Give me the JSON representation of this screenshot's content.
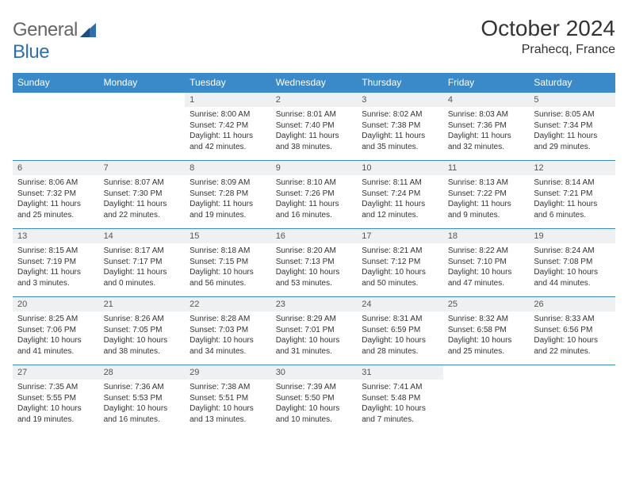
{
  "brand": {
    "part1": "General",
    "part2": "Blue"
  },
  "title": "October 2024",
  "location": "Prahecq, France",
  "colors": {
    "header_bg": "#3a8ac9",
    "header_fg": "#ffffff",
    "daynum_bg": "#eef0f2",
    "border": "#3a8ac9",
    "text": "#333333"
  },
  "daynames": [
    "Sunday",
    "Monday",
    "Tuesday",
    "Wednesday",
    "Thursday",
    "Friday",
    "Saturday"
  ],
  "weeks": [
    [
      null,
      null,
      {
        "n": "1",
        "sr": "Sunrise: 8:00 AM",
        "ss": "Sunset: 7:42 PM",
        "d1": "Daylight: 11 hours",
        "d2": "and 42 minutes."
      },
      {
        "n": "2",
        "sr": "Sunrise: 8:01 AM",
        "ss": "Sunset: 7:40 PM",
        "d1": "Daylight: 11 hours",
        "d2": "and 38 minutes."
      },
      {
        "n": "3",
        "sr": "Sunrise: 8:02 AM",
        "ss": "Sunset: 7:38 PM",
        "d1": "Daylight: 11 hours",
        "d2": "and 35 minutes."
      },
      {
        "n": "4",
        "sr": "Sunrise: 8:03 AM",
        "ss": "Sunset: 7:36 PM",
        "d1": "Daylight: 11 hours",
        "d2": "and 32 minutes."
      },
      {
        "n": "5",
        "sr": "Sunrise: 8:05 AM",
        "ss": "Sunset: 7:34 PM",
        "d1": "Daylight: 11 hours",
        "d2": "and 29 minutes."
      }
    ],
    [
      {
        "n": "6",
        "sr": "Sunrise: 8:06 AM",
        "ss": "Sunset: 7:32 PM",
        "d1": "Daylight: 11 hours",
        "d2": "and 25 minutes."
      },
      {
        "n": "7",
        "sr": "Sunrise: 8:07 AM",
        "ss": "Sunset: 7:30 PM",
        "d1": "Daylight: 11 hours",
        "d2": "and 22 minutes."
      },
      {
        "n": "8",
        "sr": "Sunrise: 8:09 AM",
        "ss": "Sunset: 7:28 PM",
        "d1": "Daylight: 11 hours",
        "d2": "and 19 minutes."
      },
      {
        "n": "9",
        "sr": "Sunrise: 8:10 AM",
        "ss": "Sunset: 7:26 PM",
        "d1": "Daylight: 11 hours",
        "d2": "and 16 minutes."
      },
      {
        "n": "10",
        "sr": "Sunrise: 8:11 AM",
        "ss": "Sunset: 7:24 PM",
        "d1": "Daylight: 11 hours",
        "d2": "and 12 minutes."
      },
      {
        "n": "11",
        "sr": "Sunrise: 8:13 AM",
        "ss": "Sunset: 7:22 PM",
        "d1": "Daylight: 11 hours",
        "d2": "and 9 minutes."
      },
      {
        "n": "12",
        "sr": "Sunrise: 8:14 AM",
        "ss": "Sunset: 7:21 PM",
        "d1": "Daylight: 11 hours",
        "d2": "and 6 minutes."
      }
    ],
    [
      {
        "n": "13",
        "sr": "Sunrise: 8:15 AM",
        "ss": "Sunset: 7:19 PM",
        "d1": "Daylight: 11 hours",
        "d2": "and 3 minutes."
      },
      {
        "n": "14",
        "sr": "Sunrise: 8:17 AM",
        "ss": "Sunset: 7:17 PM",
        "d1": "Daylight: 11 hours",
        "d2": "and 0 minutes."
      },
      {
        "n": "15",
        "sr": "Sunrise: 8:18 AM",
        "ss": "Sunset: 7:15 PM",
        "d1": "Daylight: 10 hours",
        "d2": "and 56 minutes."
      },
      {
        "n": "16",
        "sr": "Sunrise: 8:20 AM",
        "ss": "Sunset: 7:13 PM",
        "d1": "Daylight: 10 hours",
        "d2": "and 53 minutes."
      },
      {
        "n": "17",
        "sr": "Sunrise: 8:21 AM",
        "ss": "Sunset: 7:12 PM",
        "d1": "Daylight: 10 hours",
        "d2": "and 50 minutes."
      },
      {
        "n": "18",
        "sr": "Sunrise: 8:22 AM",
        "ss": "Sunset: 7:10 PM",
        "d1": "Daylight: 10 hours",
        "d2": "and 47 minutes."
      },
      {
        "n": "19",
        "sr": "Sunrise: 8:24 AM",
        "ss": "Sunset: 7:08 PM",
        "d1": "Daylight: 10 hours",
        "d2": "and 44 minutes."
      }
    ],
    [
      {
        "n": "20",
        "sr": "Sunrise: 8:25 AM",
        "ss": "Sunset: 7:06 PM",
        "d1": "Daylight: 10 hours",
        "d2": "and 41 minutes."
      },
      {
        "n": "21",
        "sr": "Sunrise: 8:26 AM",
        "ss": "Sunset: 7:05 PM",
        "d1": "Daylight: 10 hours",
        "d2": "and 38 minutes."
      },
      {
        "n": "22",
        "sr": "Sunrise: 8:28 AM",
        "ss": "Sunset: 7:03 PM",
        "d1": "Daylight: 10 hours",
        "d2": "and 34 minutes."
      },
      {
        "n": "23",
        "sr": "Sunrise: 8:29 AM",
        "ss": "Sunset: 7:01 PM",
        "d1": "Daylight: 10 hours",
        "d2": "and 31 minutes."
      },
      {
        "n": "24",
        "sr": "Sunrise: 8:31 AM",
        "ss": "Sunset: 6:59 PM",
        "d1": "Daylight: 10 hours",
        "d2": "and 28 minutes."
      },
      {
        "n": "25",
        "sr": "Sunrise: 8:32 AM",
        "ss": "Sunset: 6:58 PM",
        "d1": "Daylight: 10 hours",
        "d2": "and 25 minutes."
      },
      {
        "n": "26",
        "sr": "Sunrise: 8:33 AM",
        "ss": "Sunset: 6:56 PM",
        "d1": "Daylight: 10 hours",
        "d2": "and 22 minutes."
      }
    ],
    [
      {
        "n": "27",
        "sr": "Sunrise: 7:35 AM",
        "ss": "Sunset: 5:55 PM",
        "d1": "Daylight: 10 hours",
        "d2": "and 19 minutes."
      },
      {
        "n": "28",
        "sr": "Sunrise: 7:36 AM",
        "ss": "Sunset: 5:53 PM",
        "d1": "Daylight: 10 hours",
        "d2": "and 16 minutes."
      },
      {
        "n": "29",
        "sr": "Sunrise: 7:38 AM",
        "ss": "Sunset: 5:51 PM",
        "d1": "Daylight: 10 hours",
        "d2": "and 13 minutes."
      },
      {
        "n": "30",
        "sr": "Sunrise: 7:39 AM",
        "ss": "Sunset: 5:50 PM",
        "d1": "Daylight: 10 hours",
        "d2": "and 10 minutes."
      },
      {
        "n": "31",
        "sr": "Sunrise: 7:41 AM",
        "ss": "Sunset: 5:48 PM",
        "d1": "Daylight: 10 hours",
        "d2": "and 7 minutes."
      },
      null,
      null
    ]
  ]
}
